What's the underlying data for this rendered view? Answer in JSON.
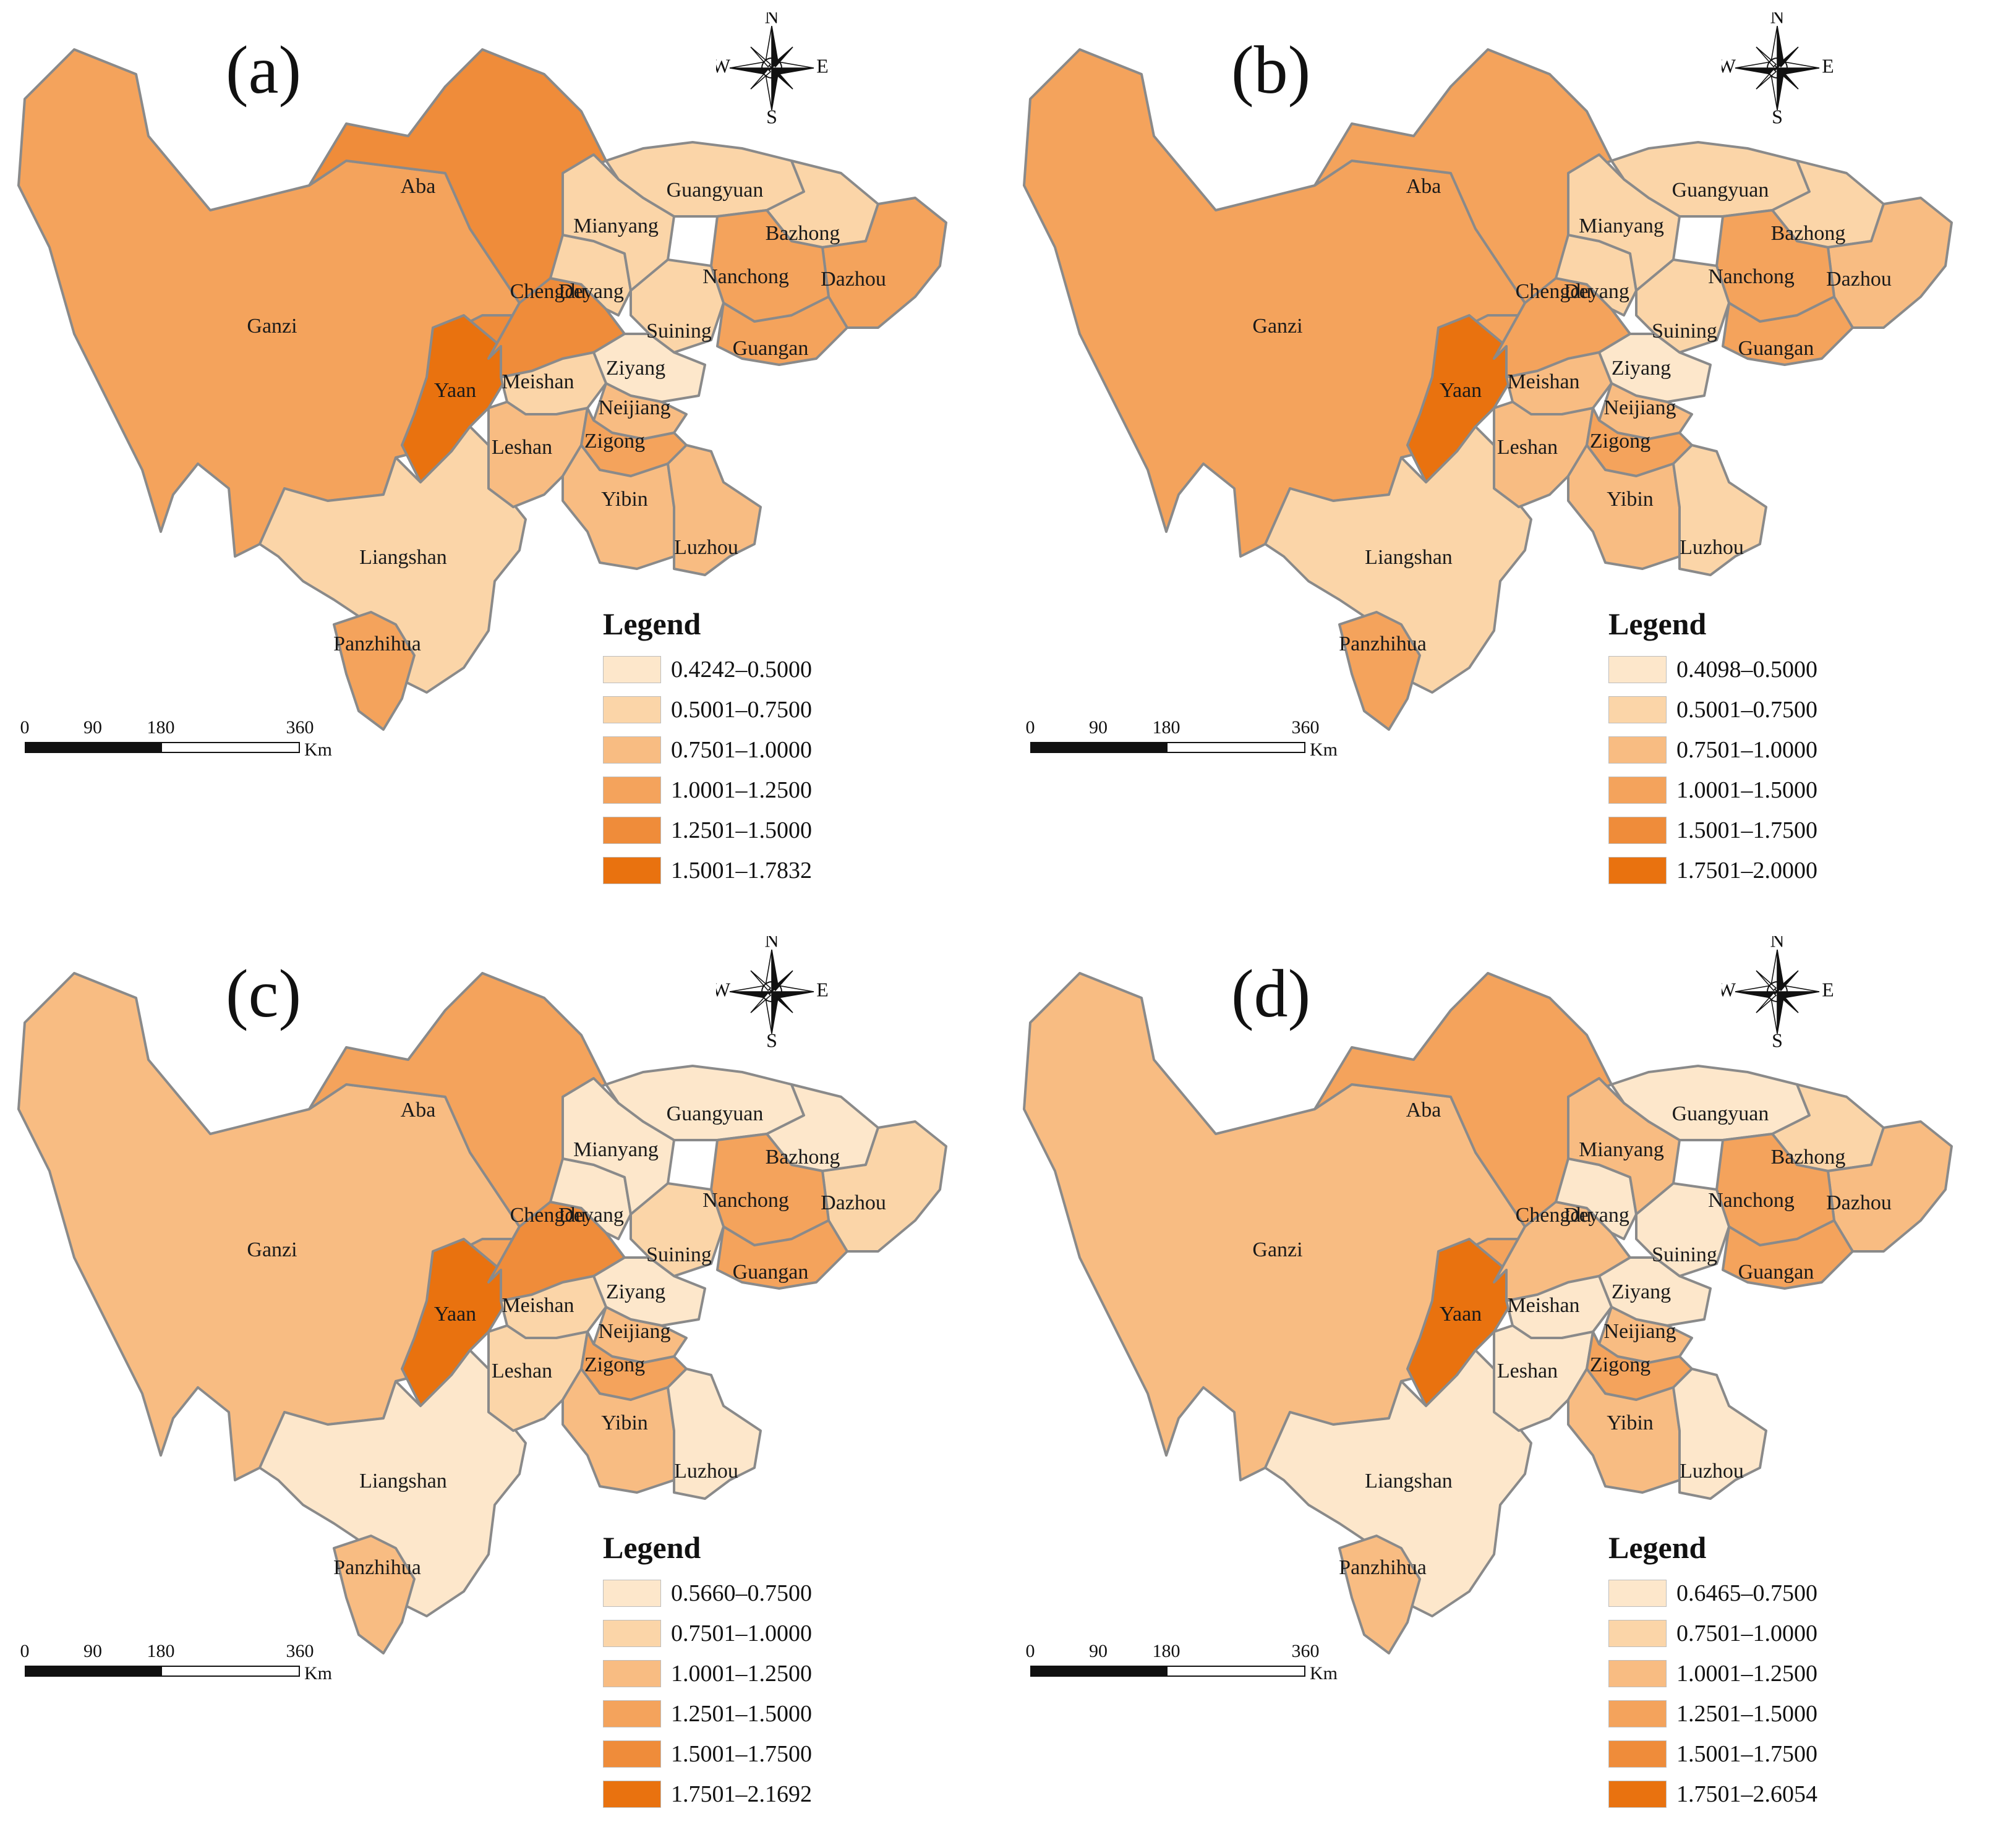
{
  "palette": [
    "#fde7cb",
    "#fbd5a8",
    "#f8bc82",
    "#f4a35c",
    "#ef8c3a",
    "#e9720f"
  ],
  "panels": [
    {
      "label": "(a)",
      "legend": {
        "title": "Legend",
        "ranges": [
          "0.4242–0.5000",
          "0.5001–0.7500",
          "0.7501–1.0000",
          "1.0001–1.2500",
          "1.2501–1.5000",
          "1.5001–1.7832"
        ]
      },
      "classes": {
        "Ganzi": 3,
        "Aba": 4,
        "Yaan": 5,
        "Liangshan": 1,
        "Panzhihua": 3,
        "Chengdu": 4,
        "Deyang": 1,
        "Mianyang": 1,
        "Guangyuan": 1,
        "Bazhong": 1,
        "Dazhou": 3,
        "Nanchong": 3,
        "Suining": 1,
        "Guangan": 3,
        "Ziyang": 0,
        "Meishan": 1,
        "Leshan": 2,
        "Neijiang": 2,
        "Zigong": 3,
        "Yibin": 2,
        "Luzhou": 2
      }
    },
    {
      "label": "(b)",
      "legend": {
        "title": "Legend",
        "ranges": [
          "0.4098–0.5000",
          "0.5001–0.7500",
          "0.7501–1.0000",
          "1.0001–1.5000",
          "1.5001–1.7500",
          "1.7501–2.0000"
        ]
      },
      "classes": {
        "Ganzi": 3,
        "Aba": 3,
        "Yaan": 5,
        "Liangshan": 1,
        "Panzhihua": 3,
        "Chengdu": 3,
        "Deyang": 1,
        "Mianyang": 1,
        "Guangyuan": 1,
        "Bazhong": 1,
        "Dazhou": 2,
        "Nanchong": 3,
        "Suining": 1,
        "Guangan": 3,
        "Ziyang": 0,
        "Meishan": 2,
        "Leshan": 2,
        "Neijiang": 2,
        "Zigong": 3,
        "Yibin": 2,
        "Luzhou": 1
      }
    },
    {
      "label": "(c)",
      "legend": {
        "title": "Legend",
        "ranges": [
          "0.5660–0.7500",
          "0.7501–1.0000",
          "1.0001–1.2500",
          "1.2501–1.5000",
          "1.5001–1.7500",
          "1.7501–2.1692"
        ]
      },
      "classes": {
        "Ganzi": 2,
        "Aba": 3,
        "Yaan": 5,
        "Liangshan": 0,
        "Panzhihua": 2,
        "Chengdu": 4,
        "Deyang": 0,
        "Mianyang": 0,
        "Guangyuan": 0,
        "Bazhong": 0,
        "Dazhou": 1,
        "Nanchong": 3,
        "Suining": 1,
        "Guangan": 3,
        "Ziyang": 0,
        "Meishan": 1,
        "Leshan": 1,
        "Neijiang": 2,
        "Zigong": 3,
        "Yibin": 2,
        "Luzhou": 0
      }
    },
    {
      "label": "(d)",
      "legend": {
        "title": "Legend",
        "ranges": [
          "0.6465–0.7500",
          "0.7501–1.0000",
          "1.0001–1.2500",
          "1.2501–1.5000",
          "1.5001–1.7500",
          "1.7501–2.6054"
        ]
      },
      "classes": {
        "Ganzi": 2,
        "Aba": 3,
        "Yaan": 5,
        "Liangshan": 0,
        "Panzhihua": 2,
        "Chengdu": 2,
        "Deyang": 0,
        "Mianyang": 2,
        "Guangyuan": 0,
        "Bazhong": 1,
        "Dazhou": 2,
        "Nanchong": 3,
        "Suining": 0,
        "Guangan": 3,
        "Ziyang": 0,
        "Meishan": 0,
        "Leshan": 0,
        "Neijiang": 2,
        "Zigong": 3,
        "Yibin": 2,
        "Luzhou": 0
      }
    }
  ],
  "region_names": [
    "Ganzi",
    "Aba",
    "Yaan",
    "Liangshan",
    "Panzhihua",
    "Chengdu",
    "Deyang",
    "Mianyang",
    "Guangyuan",
    "Bazhong",
    "Dazhou",
    "Nanchong",
    "Suining",
    "Guangan",
    "Ziyang",
    "Meishan",
    "Leshan",
    "Neijiang",
    "Zigong",
    "Yibin",
    "Luzhou"
  ],
  "scale_bar": {
    "ticks": [
      "0",
      "90",
      "180",
      "360"
    ],
    "unit": "Km"
  },
  "compass": {
    "n": "N",
    "s": "S",
    "e": "E",
    "w": "W"
  }
}
